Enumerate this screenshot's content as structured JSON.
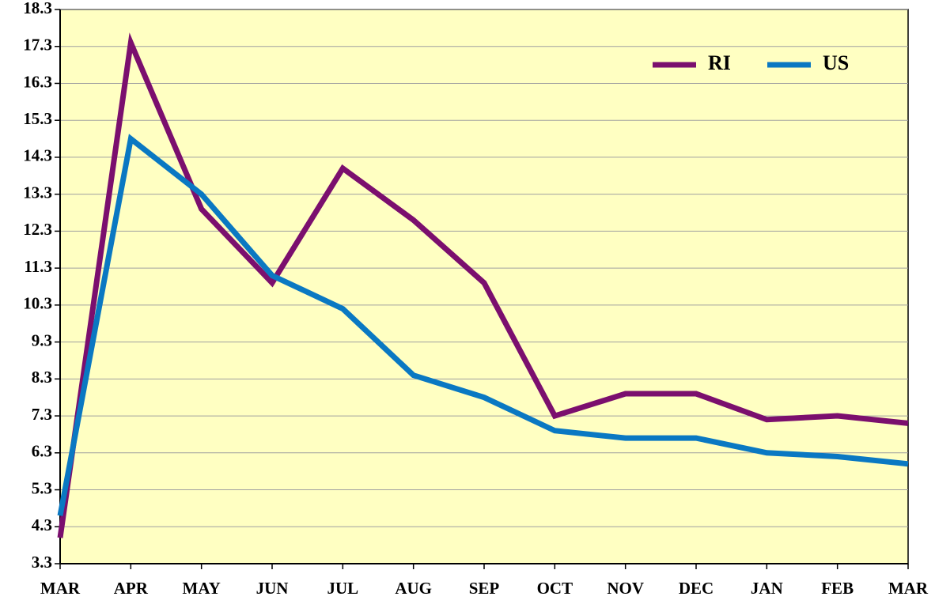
{
  "chart_data": {
    "type": "line",
    "categories": [
      "MAR",
      "APR",
      "MAY",
      "JUN",
      "JUL",
      "AUG",
      "SEP",
      "OCT",
      "NOV",
      "DEC",
      "JAN",
      "FEB",
      "MAR"
    ],
    "series": [
      {
        "name": "RI",
        "color": "#7b0f6e",
        "values": [
          4.0,
          17.4,
          12.9,
          10.9,
          14.0,
          12.6,
          10.9,
          7.3,
          7.9,
          7.9,
          7.2,
          7.3,
          7.1
        ]
      },
      {
        "name": "US",
        "color": "#0a78c2",
        "values": [
          4.6,
          14.8,
          13.3,
          11.1,
          10.2,
          8.4,
          7.8,
          6.9,
          6.7,
          6.7,
          6.3,
          6.2,
          6.0
        ]
      }
    ],
    "ylim": [
      3.3,
      18.3
    ],
    "yticks": [
      3.3,
      4.3,
      5.3,
      6.3,
      7.3,
      8.3,
      9.3,
      10.3,
      11.3,
      12.3,
      13.3,
      14.3,
      15.3,
      16.3,
      17.3,
      18.3
    ],
    "grid": true,
    "legend": "upper right",
    "background": "#ffffc2"
  }
}
